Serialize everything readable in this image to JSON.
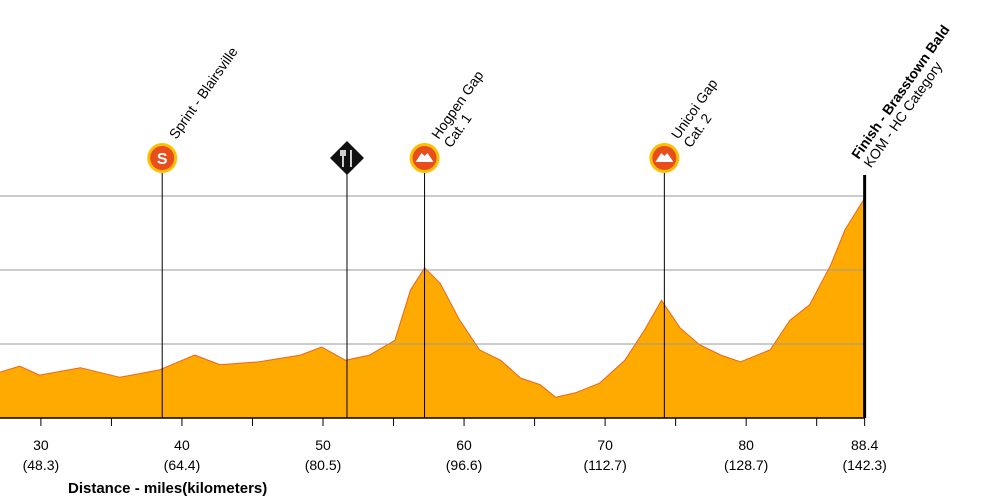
{
  "chart_data": {
    "type": "area",
    "x_label": "Distance - miles(kilometers)",
    "xlim": [
      27.1,
      97.5
    ],
    "ylim": [
      1000,
      4500
    ],
    "xticks": [
      30,
      40,
      50,
      60,
      70,
      80,
      88.4
    ],
    "xtick_km_labels": [
      "(48.3)",
      "(64.4)",
      "(80.5)",
      "(96.6)",
      "(112.7)",
      "(128.7)",
      "(142.3)"
    ],
    "minor_xticks": [
      35,
      45,
      55,
      65,
      75,
      85
    ],
    "yticks": [
      2000,
      3000,
      4000
    ],
    "grid": true,
    "x": [
      27.1,
      28.5,
      29.9,
      32.8,
      35.6,
      38.4,
      40.9,
      42.7,
      45.5,
      48.4,
      49.9,
      51.6,
      53.3,
      55.1,
      56.2,
      57.2,
      58.3,
      59.7,
      61.1,
      62.6,
      64.0,
      65.4,
      66.5,
      67.9,
      69.6,
      71.4,
      72.8,
      74.0,
      75.3,
      76.7,
      78.2,
      79.6,
      81.7,
      83.1,
      84.5,
      86.0,
      87.0,
      88.4
    ],
    "series": [
      {
        "color": "#ffaa00",
        "line_color": "#e8641f",
        "values": [
          1620,
          1700,
          1580,
          1680,
          1550,
          1650,
          1850,
          1720,
          1760,
          1850,
          1960,
          1780,
          1850,
          2050,
          2730,
          3030,
          2820,
          2320,
          1920,
          1780,
          1540,
          1450,
          1280,
          1340,
          1470,
          1780,
          2190,
          2590,
          2220,
          1990,
          1850,
          1760,
          1920,
          2320,
          2530,
          3070,
          3540,
          3970
        ]
      }
    ],
    "markers": [
      {
        "x": 38.6,
        "icon": "sprint",
        "icon_text": "S",
        "lines": [
          "Sprint - Blairsville"
        ]
      },
      {
        "x": 51.7,
        "icon": "feed",
        "lines": []
      },
      {
        "x": 57.2,
        "icon": "kom",
        "lines": [
          "Hogpen Gap",
          "Cat. 1"
        ]
      },
      {
        "x": 74.2,
        "icon": "kom",
        "lines": [
          "Unicoi Gap",
          "Cat. 2"
        ]
      },
      {
        "x": 88.4,
        "icon": "finish",
        "lines": [
          "Finish - Brasstown Bald",
          "KOM - HC Category"
        ]
      }
    ]
  }
}
